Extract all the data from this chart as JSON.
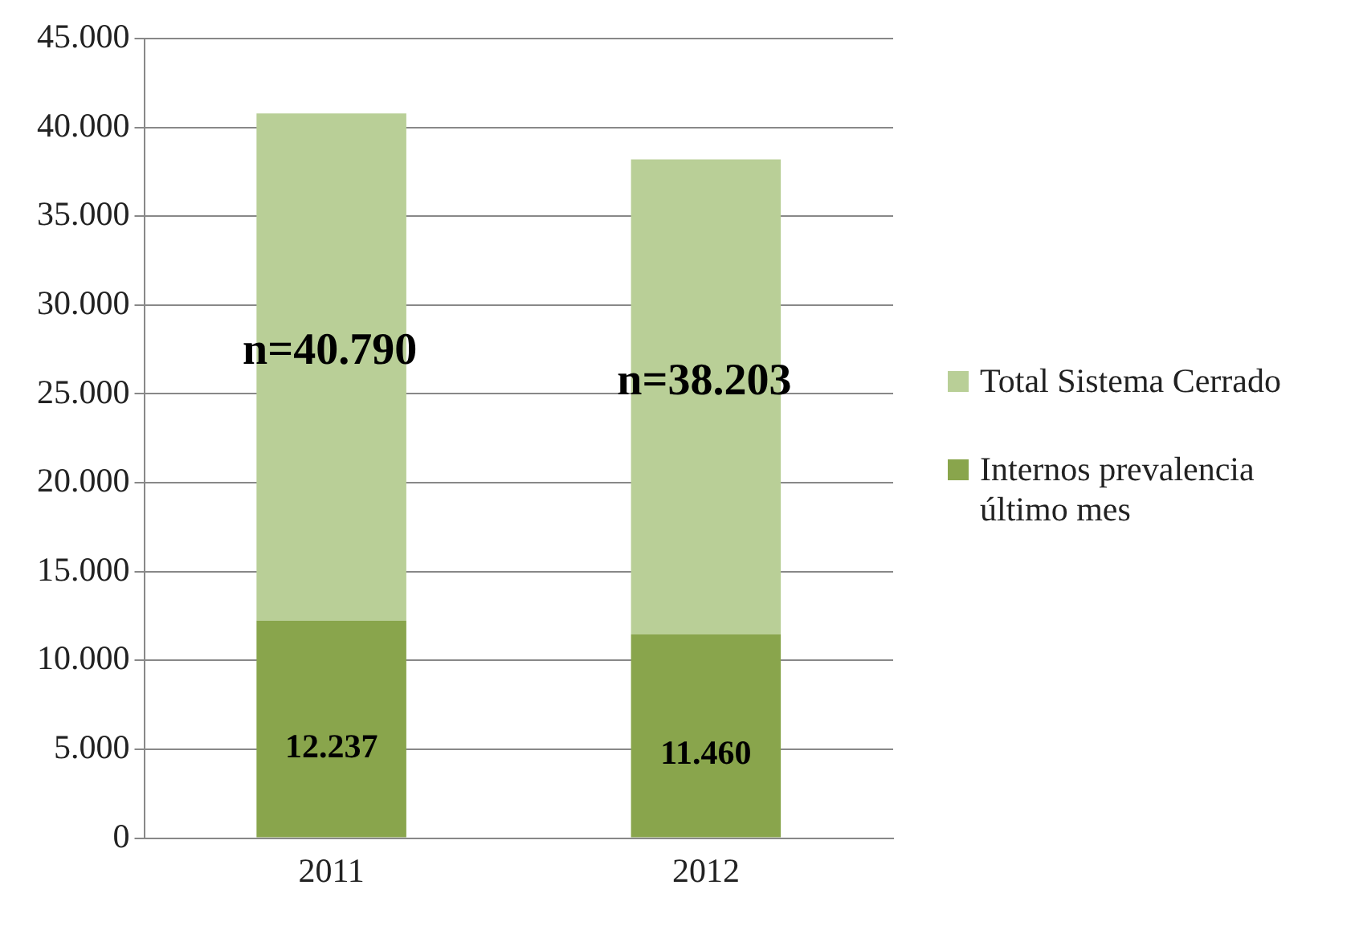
{
  "chart_data": {
    "type": "bar",
    "stacked": true,
    "categories": [
      "2011",
      "2012"
    ],
    "series": [
      {
        "name": "Internos prevalencia último mes",
        "color": "#89a54c",
        "values": [
          12237,
          11460
        ],
        "value_labels": [
          "12.237",
          "11.460"
        ]
      },
      {
        "name": "Total Sistema Cerrado",
        "color": "#b9cf97",
        "values": [
          28553,
          26743
        ]
      }
    ],
    "totals": [
      "n=40.790",
      "n=38.203"
    ],
    "ylim": [
      0,
      45000
    ],
    "yticks": [
      {
        "value": 0,
        "label": "0"
      },
      {
        "value": 5000,
        "label": "5.000"
      },
      {
        "value": 10000,
        "label": "10.000"
      },
      {
        "value": 15000,
        "label": "15.000"
      },
      {
        "value": 20000,
        "label": "20.000"
      },
      {
        "value": 25000,
        "label": "25.000"
      },
      {
        "value": 30000,
        "label": "30.000"
      },
      {
        "value": 35000,
        "label": "35.000"
      },
      {
        "value": 40000,
        "label": "40.000"
      },
      {
        "value": 45000,
        "label": "45.000"
      }
    ],
    "grid": "y",
    "legend": "right"
  }
}
